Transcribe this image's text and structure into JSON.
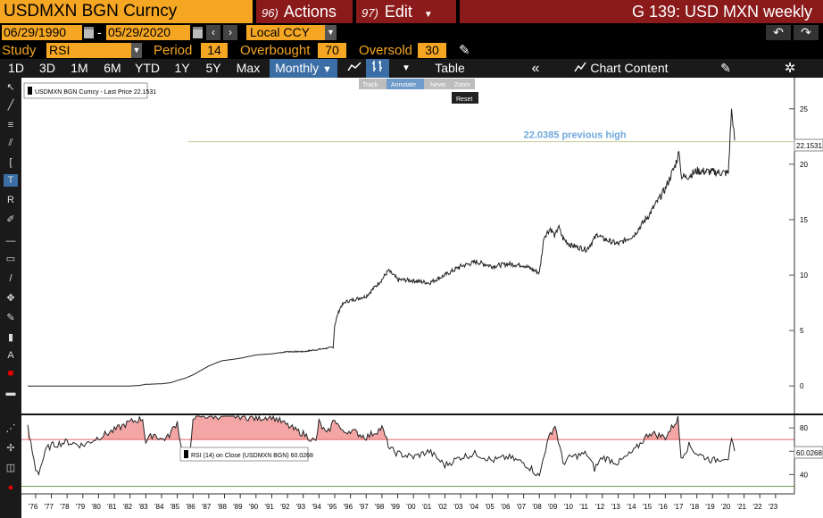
{
  "topbar": {
    "ticker": "USDMXN BGN Curncy",
    "actions_num": "96)",
    "actions_label": "Actions",
    "edit_num": "97)",
    "edit_label": "Edit",
    "page_title": "G 139: USD MXN weekly"
  },
  "daterow": {
    "start_date": "06/29/1990",
    "separator": "-",
    "end_date": "05/29/2020",
    "currency": "Local CCY"
  },
  "studyrow": {
    "study_label": "Study",
    "study_value": "RSI",
    "period_label": "Period",
    "period_value": "14",
    "overbought_label": "Overbought",
    "overbought_value": "70",
    "oversold_label": "Oversold",
    "oversold_value": "30"
  },
  "toolbar": {
    "ranges": [
      "1D",
      "3D",
      "1M",
      "6M",
      "YTD",
      "1Y",
      "5Y",
      "Max"
    ],
    "frequency": "Monthly",
    "table_label": "Table",
    "chart_content_label": "Chart Content"
  },
  "popup": {
    "track": "Track",
    "annotate": "Annotate",
    "news": "News",
    "zoom": "Zoom",
    "reset": "Reset"
  },
  "colors": {
    "amber": "#f5a623",
    "bloomberg_red": "#8b1a1a",
    "active_blue": "#3a6ea5",
    "annotation_blue": "#6fa8dc",
    "rsi_fill": "#f4a6a6",
    "overbought_line": "#e06666",
    "oversold_line": "#6aa84f"
  },
  "chart_data": [
    {
      "type": "line",
      "legend": "USDMXN BGN Curncy - Last Price 22.1531",
      "last_price_label": "22.1531",
      "annotation": "22.0385 previous high",
      "reference_level": 22.0385,
      "last_value": 22.1531,
      "ylim": [
        -2,
        27
      ],
      "y_ticks": [
        0,
        5,
        10,
        15,
        20,
        25
      ],
      "x_ticks": [
        "'76",
        "'77",
        "'78",
        "'79",
        "'80",
        "'81",
        "'82",
        "'83",
        "'84",
        "'85",
        "'86",
        "'87",
        "'88",
        "'89",
        "'90",
        "'91",
        "'92",
        "'93",
        "'94",
        "'95",
        "'96",
        "'97",
        "'98",
        "'99",
        "'00",
        "'01",
        "'02",
        "'03",
        "'04",
        "'05",
        "'06",
        "'07",
        "'08",
        "'09",
        "'10",
        "'11",
        "'12",
        "'13",
        "'14",
        "'15",
        "'16",
        "'17",
        "'18",
        "'19",
        "'20",
        "'21",
        "'22",
        "'23"
      ],
      "x": [
        1975.5,
        1976,
        1976.7,
        1977,
        1978,
        1979,
        1980,
        1981,
        1982,
        1982.6,
        1983,
        1984,
        1984.6,
        1985,
        1985.5,
        1986,
        1986.5,
        1987,
        1987.5,
        1987.9,
        1988,
        1989,
        1990,
        1991,
        1992,
        1993,
        1994,
        1994.9,
        1995,
        1995.2,
        1995.4,
        1995.7,
        1996,
        1997,
        1998,
        1998.4,
        1998.8,
        1999,
        2000,
        2001,
        2002,
        2003,
        2004,
        2005,
        2006,
        2007,
        2008,
        2008.3,
        2008.7,
        2009,
        2009.2,
        2009.5,
        2010,
        2011,
        2011.7,
        2012,
        2013,
        2014,
        2015,
        2016,
        2016.6,
        2016.9,
        2017,
        2017.3,
        2018,
        2019,
        2020,
        2020.2,
        2020.3,
        2020.4
      ],
      "y": [
        0,
        0,
        0,
        0,
        0,
        0,
        0,
        0,
        0,
        0.05,
        0.15,
        0.2,
        0.3,
        0.5,
        0.7,
        1,
        1.4,
        1.8,
        2.1,
        2.3,
        2.3,
        2.5,
        2.8,
        2.9,
        3.1,
        3.1,
        3.3,
        3.5,
        5.5,
        6.5,
        7.2,
        7.6,
        7.7,
        8.1,
        9.6,
        10.4,
        9.9,
        9.6,
        9.5,
        9.3,
        10,
        10.8,
        11.2,
        10.8,
        11,
        10.9,
        10.2,
        13.5,
        14.2,
        13.5,
        14.4,
        13.3,
        12.7,
        12.3,
        13.7,
        13.3,
        12.8,
        13.6,
        15.5,
        17.8,
        19.8,
        21.2,
        19,
        18.8,
        19.4,
        19.3,
        19.2,
        24.8,
        23.8,
        22.15
      ]
    },
    {
      "type": "line",
      "legend": "RSI (14) on Close (USDMXN BGN) 60.0268",
      "last_value_label": "60.0268",
      "overbought": 70,
      "oversold": 30,
      "ylim": [
        25,
        90
      ],
      "y_ticks": [
        40,
        60,
        80
      ],
      "x": [
        1975.5,
        1976,
        1976.2,
        1976.7,
        1977,
        1978,
        1979,
        1980,
        1981,
        1982,
        1982.8,
        1983,
        1983.5,
        1984,
        1984.4,
        1985,
        1985.3,
        1985.8,
        1986,
        1987,
        1988,
        1989,
        1990,
        1991,
        1992,
        1992.5,
        1993,
        1993.8,
        1994,
        1994.5,
        1995,
        1995.5,
        1996,
        1997,
        1998,
        1998.5,
        1999,
        2000,
        2001,
        2002,
        2003,
        2004,
        2005,
        2006,
        2007,
        2007.5,
        2008,
        2008.3,
        2008.7,
        2009,
        2009.5,
        2010,
        2011,
        2011.5,
        2012,
        2013,
        2014,
        2015,
        2016,
        2016.8,
        2017,
        2017.5,
        2018,
        2019,
        2019.8,
        2020,
        2020.2,
        2020.4
      ],
      "y": [
        80,
        45,
        42,
        62,
        65,
        68,
        65,
        72,
        78,
        85,
        88,
        68,
        75,
        70,
        72,
        85,
        60,
        55,
        90,
        90,
        90,
        90,
        88,
        90,
        82,
        78,
        75,
        68,
        85,
        74,
        88,
        76,
        78,
        72,
        80,
        62,
        58,
        55,
        60,
        48,
        55,
        58,
        52,
        55,
        50,
        45,
        38,
        58,
        75,
        82,
        50,
        55,
        58,
        45,
        55,
        50,
        60,
        76,
        72,
        88,
        55,
        65,
        58,
        52,
        55,
        54,
        68,
        60
      ]
    }
  ]
}
